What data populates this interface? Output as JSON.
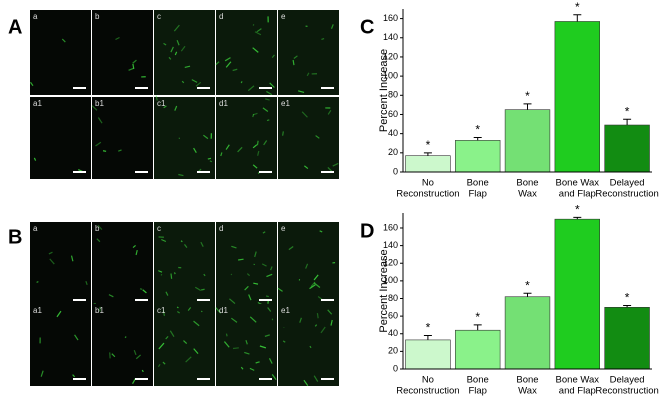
{
  "figure": {
    "panels": [
      {
        "label": "A",
        "tiles": [
          "a",
          "b",
          "c",
          "d",
          "e",
          "a1",
          "b1",
          "c1",
          "d1",
          "e1"
        ]
      },
      {
        "label": "B",
        "tiles": [
          "a",
          "b",
          "c",
          "d",
          "e",
          "a1",
          "b1",
          "c1",
          "d1",
          "e1"
        ]
      }
    ]
  },
  "chart_data": [
    {
      "type": "bar",
      "panel_label": "C",
      "ylabel": "Percent Increase",
      "categories": [
        [
          "No",
          "Reconstruction"
        ],
        [
          "Bone",
          "Flap"
        ],
        [
          "Bone",
          "Wax"
        ],
        [
          "Bone Wax",
          "and  Flap"
        ],
        [
          "Delayed",
          "Reconstruction"
        ]
      ],
      "values": [
        17,
        33,
        65,
        157,
        49
      ],
      "errors": [
        3,
        3,
        6,
        7,
        6
      ],
      "markers": [
        "*",
        "*",
        "*",
        "*",
        "*"
      ],
      "colors": [
        "#ccf8cc",
        "#8af28a",
        "#74e074",
        "#1fcc1f",
        "#128c12"
      ],
      "ylim": [
        0,
        170
      ],
      "yticks": [
        0,
        20,
        40,
        60,
        80,
        100,
        120,
        140,
        160
      ]
    },
    {
      "type": "bar",
      "panel_label": "D",
      "ylabel": "Percent Increase",
      "categories": [
        [
          "No",
          "Reconstruction"
        ],
        [
          "Bone",
          "Flap"
        ],
        [
          "Bone",
          "Wax"
        ],
        [
          "Bone Wax",
          "and  Flap"
        ],
        [
          "Delayed",
          "Reconstruction"
        ]
      ],
      "values": [
        33,
        44,
        82,
        170,
        70
      ],
      "errors": [
        5,
        6,
        4,
        2,
        2
      ],
      "markers": [
        "*",
        "*",
        "*",
        "*",
        "*"
      ],
      "colors": [
        "#ccf8cc",
        "#8af28a",
        "#74e074",
        "#1fcc1f",
        "#128c12"
      ],
      "ylim": [
        0,
        177
      ],
      "yticks": [
        0,
        20,
        40,
        60,
        80,
        100,
        120,
        140,
        160
      ]
    }
  ]
}
